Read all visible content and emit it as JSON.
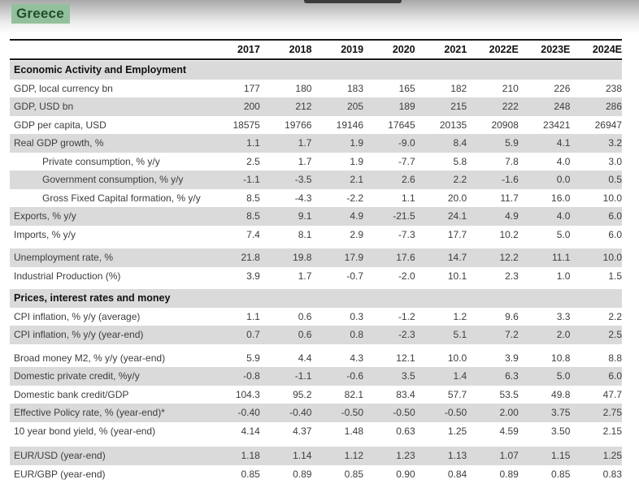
{
  "page": {
    "title": "Greece"
  },
  "colors": {
    "title_highlight": "#93c09c",
    "title_text": "#1d4f2a",
    "row_shade": "#dadada",
    "rule_line": "#161616",
    "body_text": "#3d3d3d",
    "tab_fragment": "#3b3b3b"
  },
  "table": {
    "columns": [
      "2017",
      "2018",
      "2019",
      "2020",
      "2021",
      "2022E",
      "2023E",
      "2024E"
    ],
    "rows": [
      {
        "type": "section",
        "label": "Economic Activity and Employment",
        "indent": false,
        "gap_before": 0,
        "values": []
      },
      {
        "type": "data",
        "label": "GDP, local currency bn",
        "indent": false,
        "gap_before": 0,
        "values": [
          "177",
          "180",
          "183",
          "165",
          "182",
          "210",
          "226",
          "238"
        ]
      },
      {
        "type": "data",
        "label": "GDP, USD bn",
        "indent": false,
        "gap_before": 0,
        "values": [
          "200",
          "212",
          "205",
          "189",
          "215",
          "222",
          "248",
          "286"
        ]
      },
      {
        "type": "data",
        "label": "GDP per capita, USD",
        "indent": false,
        "gap_before": 0,
        "values": [
          "18575",
          "19766",
          "19146",
          "17645",
          "20135",
          "20908",
          "23421",
          "26947"
        ]
      },
      {
        "type": "data",
        "label": "Real GDP growth, %",
        "indent": false,
        "gap_before": 0,
        "values": [
          "1.1",
          "1.7",
          "1.9",
          "-9.0",
          "8.4",
          "5.9",
          "4.1",
          "3.2"
        ]
      },
      {
        "type": "data",
        "label": "Private consumption, % y/y",
        "indent": true,
        "gap_before": 0,
        "values": [
          "2.5",
          "1.7",
          "1.9",
          "-7.7",
          "5.8",
          "7.8",
          "4.0",
          "3.0"
        ]
      },
      {
        "type": "data",
        "label": "Government consumption, % y/y",
        "indent": true,
        "gap_before": 0,
        "values": [
          "-1.1",
          "-3.5",
          "2.1",
          "2.6",
          "2.2",
          "-1.6",
          "0.0",
          "0.5"
        ]
      },
      {
        "type": "data",
        "label": "Gross Fixed Capital formation, % y/y",
        "indent": true,
        "gap_before": 0,
        "values": [
          "8.5",
          "-4.3",
          "-2.2",
          "1.1",
          "20.0",
          "11.7",
          "16.0",
          "10.0"
        ]
      },
      {
        "type": "data",
        "label": "Exports, % y/y",
        "indent": false,
        "gap_before": 0,
        "values": [
          "8.5",
          "9.1",
          "4.9",
          "-21.5",
          "24.1",
          "4.9",
          "4.0",
          "6.0"
        ]
      },
      {
        "type": "data",
        "label": "Imports, % y/y",
        "indent": false,
        "gap_before": 0,
        "values": [
          "7.4",
          "8.1",
          "2.9",
          "-7.3",
          "17.7",
          "10.2",
          "5.0",
          "6.0"
        ]
      },
      {
        "type": "data",
        "label": "Unemployment rate, %",
        "indent": false,
        "gap_before": 6,
        "values": [
          "21.8",
          "19.8",
          "17.9",
          "17.6",
          "14.7",
          "12.2",
          "11.1",
          "10.0"
        ]
      },
      {
        "type": "data",
        "label": "Industrial Production (%)",
        "indent": false,
        "gap_before": 0,
        "values": [
          "3.9",
          "1.7",
          "-0.7",
          "-2.0",
          "10.1",
          "2.3",
          "1.0",
          "1.5"
        ]
      },
      {
        "type": "section",
        "label": "Prices, interest rates and money",
        "indent": false,
        "gap_before": 5,
        "values": []
      },
      {
        "type": "data",
        "label": "CPI inflation, % y/y (average)",
        "indent": false,
        "gap_before": 0,
        "values": [
          "1.1",
          "0.6",
          "0.3",
          "-1.2",
          "1.2",
          "9.6",
          "3.3",
          "2.2"
        ]
      },
      {
        "type": "data",
        "label": "CPI inflation, % y/y (year-end)",
        "indent": false,
        "gap_before": 0,
        "values": [
          "0.7",
          "0.6",
          "0.8",
          "-2.3",
          "5.1",
          "7.2",
          "2.0",
          "2.5"
        ]
      },
      {
        "type": "data",
        "label": "Broad money M2, % y/y (year-end)",
        "indent": false,
        "gap_before": 6,
        "values": [
          "5.9",
          "4.4",
          "4.3",
          "12.1",
          "10.0",
          "3.9",
          "10.8",
          "8.8"
        ]
      },
      {
        "type": "data",
        "label": "Domestic private credit, %y/y",
        "indent": false,
        "gap_before": 0,
        "values": [
          "-0.8",
          "-1.1",
          "-0.6",
          "3.5",
          "1.4",
          "6.3",
          "5.0",
          "6.0"
        ]
      },
      {
        "type": "data",
        "label": "Domestic bank credit/GDP",
        "indent": false,
        "gap_before": 0,
        "values": [
          "104.3",
          "95.2",
          "82.1",
          "83.4",
          "57.7",
          "53.5",
          "49.8",
          "47.7"
        ]
      },
      {
        "type": "data",
        "label": "Effective Policy rate, % (year-end)*",
        "indent": false,
        "gap_before": 0,
        "values": [
          "-0.40",
          "-0.40",
          "-0.50",
          "-0.50",
          "-0.50",
          "2.00",
          "3.75",
          "2.75"
        ]
      },
      {
        "type": "data",
        "label": "10 year bond yield, % (year-end)",
        "indent": false,
        "gap_before": 0,
        "values": [
          "4.14",
          "4.37",
          "1.48",
          "0.63",
          "1.25",
          "4.59",
          "3.50",
          "2.15"
        ]
      },
      {
        "type": "data",
        "label": "EUR/USD (year-end)",
        "indent": false,
        "gap_before": 8,
        "values": [
          "1.18",
          "1.14",
          "1.12",
          "1.23",
          "1.13",
          "1.07",
          "1.15",
          "1.25"
        ]
      },
      {
        "type": "data",
        "label": "EUR/GBP (year-end)",
        "indent": false,
        "gap_before": 0,
        "values": [
          "0.85",
          "0.89",
          "0.85",
          "0.90",
          "0.84",
          "0.89",
          "0.85",
          "0.83"
        ]
      }
    ]
  }
}
